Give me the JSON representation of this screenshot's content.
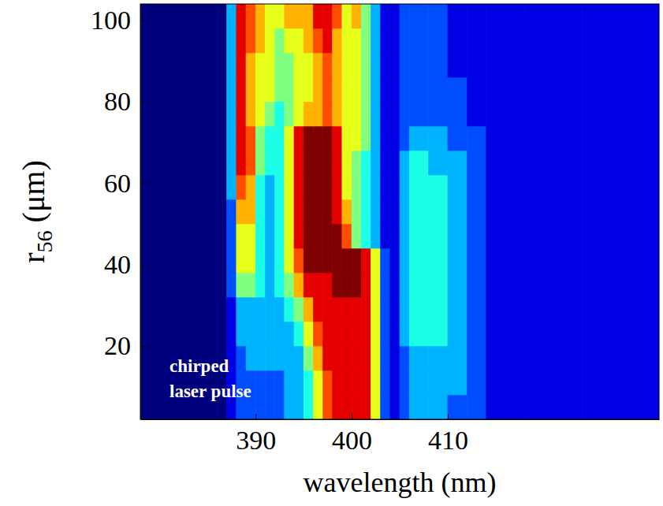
{
  "chart_data": {
    "type": "heatmap",
    "x_label": "wavelength (nm)",
    "y_label": "r56 (μm)",
    "annotation": [
      "chirped",
      "laser pulse"
    ],
    "xlim": [
      378,
      432
    ],
    "ylim": [
      2,
      104
    ],
    "xticks": [
      390,
      400,
      410
    ],
    "yticks": [
      20,
      40,
      60,
      80,
      100
    ],
    "x_edges": [
      378,
      386,
      387,
      388,
      389,
      390,
      391,
      392,
      393,
      394,
      395,
      396,
      397,
      398,
      399,
      400,
      401,
      402,
      403,
      404,
      405,
      406,
      408,
      410,
      412,
      414,
      416,
      418,
      424,
      432
    ],
    "y_edges": [
      2,
      8,
      14,
      20,
      26,
      32,
      38,
      44,
      50,
      56,
      62,
      68,
      74,
      80,
      86,
      92,
      98,
      104
    ],
    "zlim": [
      0,
      10
    ],
    "cells": [
      [
        0,
        0,
        1,
        2,
        2,
        2,
        2,
        2,
        3,
        3,
        4,
        6,
        8,
        9,
        9,
        9,
        9,
        6,
        2,
        1,
        2,
        3,
        3,
        2,
        2,
        1,
        1,
        1,
        1
      ],
      [
        0,
        0,
        1,
        2,
        2,
        2,
        2,
        2,
        3,
        3,
        4,
        6,
        8,
        9,
        9,
        9,
        9,
        6,
        2,
        1,
        2,
        3,
        3,
        3,
        2,
        1,
        1,
        1,
        1
      ],
      [
        0,
        0,
        1,
        2,
        3,
        3,
        3,
        3,
        3,
        3,
        5,
        7,
        9,
        9,
        9,
        9,
        9,
        6,
        2,
        1,
        2,
        3,
        3,
        3,
        2,
        1,
        1,
        1,
        1
      ],
      [
        0,
        0,
        1,
        3,
        3,
        3,
        3,
        3,
        3,
        4,
        6,
        8,
        9,
        9,
        9,
        9,
        9,
        6,
        2,
        1,
        3,
        4,
        4,
        3,
        2,
        1,
        1,
        1,
        1
      ],
      [
        0,
        0,
        1,
        3,
        3,
        3,
        3,
        3,
        4,
        5,
        7,
        9,
        9,
        9,
        9,
        9,
        9,
        6,
        2,
        1,
        3,
        4,
        4,
        3,
        2,
        1,
        1,
        1,
        1
      ],
      [
        0,
        0,
        2,
        5,
        5,
        4,
        3,
        4,
        5,
        7,
        9,
        9,
        9,
        10,
        10,
        10,
        9,
        6,
        2,
        1,
        3,
        4,
        4,
        3,
        2,
        1,
        1,
        1,
        1
      ],
      [
        0,
        0,
        2,
        6,
        6,
        4,
        3,
        4,
        6,
        8,
        10,
        10,
        10,
        10,
        10,
        10,
        9,
        6,
        2,
        1,
        3,
        4,
        4,
        3,
        2,
        1,
        1,
        1,
        1
      ],
      [
        0,
        0,
        2,
        6,
        6,
        4,
        3,
        4,
        6,
        9,
        10,
        10,
        10,
        10,
        8,
        5,
        4,
        3,
        1,
        1,
        3,
        4,
        4,
        3,
        2,
        1,
        1,
        1,
        1
      ],
      [
        0,
        0,
        2,
        7,
        7,
        4,
        3,
        4,
        6,
        9,
        10,
        10,
        10,
        9,
        7,
        5,
        4,
        3,
        1,
        1,
        3,
        4,
        4,
        3,
        2,
        1,
        1,
        1,
        1
      ],
      [
        0,
        0,
        3,
        8,
        7,
        4,
        3,
        4,
        6,
        9,
        10,
        10,
        10,
        9,
        6,
        5,
        4,
        3,
        1,
        1,
        3,
        4,
        4,
        3,
        2,
        1,
        1,
        1,
        1
      ],
      [
        0,
        0,
        3,
        9,
        8,
        5,
        4,
        4,
        6,
        9,
        10,
        10,
        10,
        9,
        6,
        5,
        4,
        3,
        1,
        1,
        3,
        4,
        3,
        3,
        2,
        1,
        1,
        1,
        1
      ],
      [
        0,
        0,
        3,
        9,
        8,
        5,
        4,
        4,
        6,
        9,
        10,
        10,
        10,
        9,
        6,
        6,
        5,
        3,
        1,
        1,
        2,
        3,
        3,
        2,
        2,
        1,
        1,
        1,
        1
      ],
      [
        0,
        0,
        3,
        9,
        7,
        6,
        5,
        4,
        5,
        6,
        7,
        7,
        8,
        7,
        6,
        6,
        5,
        3,
        1,
        1,
        2,
        2,
        2,
        2,
        1,
        1,
        1,
        1,
        1
      ],
      [
        0,
        0,
        3,
        9,
        7,
        6,
        6,
        5,
        5,
        6,
        6,
        7,
        8,
        7,
        6,
        6,
        5,
        3,
        1,
        1,
        2,
        2,
        2,
        2,
        1,
        1,
        1,
        1,
        1
      ],
      [
        0,
        0,
        3,
        9,
        7,
        6,
        6,
        5,
        5,
        6,
        6,
        7,
        8,
        7,
        6,
        6,
        5,
        3,
        1,
        1,
        2,
        2,
        2,
        1,
        1,
        1,
        1,
        1,
        1
      ],
      [
        0,
        0,
        3,
        9,
        8,
        7,
        6,
        5,
        6,
        6,
        7,
        8,
        9,
        7,
        6,
        6,
        5,
        3,
        1,
        1,
        2,
        2,
        2,
        1,
        1,
        1,
        1,
        1,
        1
      ],
      [
        0,
        0,
        3,
        9,
        8,
        7,
        6,
        6,
        7,
        7,
        7,
        9,
        9,
        8,
        6,
        7,
        5,
        3,
        1,
        1,
        2,
        2,
        2,
        1,
        1,
        1,
        1,
        1,
        1
      ]
    ]
  }
}
